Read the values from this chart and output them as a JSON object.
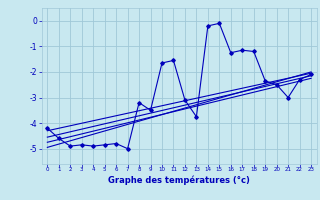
{
  "xlabel": "Graphe des températures (°c)",
  "bg_color": "#c8e8f0",
  "grid_color": "#a0c8d8",
  "line_color": "#0000bb",
  "xlim": [
    -0.5,
    23.5
  ],
  "ylim": [
    -5.6,
    0.5
  ],
  "yticks": [
    0,
    -1,
    -2,
    -3,
    -4,
    -5
  ],
  "xticks": [
    0,
    1,
    2,
    3,
    4,
    5,
    6,
    7,
    8,
    9,
    10,
    11,
    12,
    13,
    14,
    15,
    16,
    17,
    18,
    19,
    20,
    21,
    22,
    23
  ],
  "series": {
    "main": [
      [
        0,
        -4.2
      ],
      [
        1,
        -4.6
      ],
      [
        2,
        -4.9
      ],
      [
        3,
        -4.85
      ],
      [
        4,
        -4.9
      ],
      [
        5,
        -4.85
      ],
      [
        6,
        -4.8
      ],
      [
        7,
        -5.0
      ],
      [
        8,
        -3.2
      ],
      [
        9,
        -3.5
      ],
      [
        10,
        -1.65
      ],
      [
        11,
        -1.55
      ],
      [
        12,
        -3.1
      ],
      [
        13,
        -3.75
      ],
      [
        14,
        -0.2
      ],
      [
        15,
        -0.1
      ],
      [
        16,
        -1.25
      ],
      [
        17,
        -1.15
      ],
      [
        18,
        -1.2
      ],
      [
        19,
        -2.35
      ],
      [
        20,
        -2.5
      ],
      [
        21,
        -3.0
      ],
      [
        22,
        -2.3
      ],
      [
        23,
        -2.1
      ]
    ],
    "linear1": [
      [
        0,
        -4.3
      ],
      [
        23,
        -2.05
      ]
    ],
    "linear2": [
      [
        0,
        -4.55
      ],
      [
        23,
        -2.15
      ]
    ],
    "linear3": [
      [
        0,
        -4.75
      ],
      [
        23,
        -2.25
      ]
    ],
    "linear4": [
      [
        0,
        -4.95
      ],
      [
        23,
        -2.0
      ]
    ]
  }
}
